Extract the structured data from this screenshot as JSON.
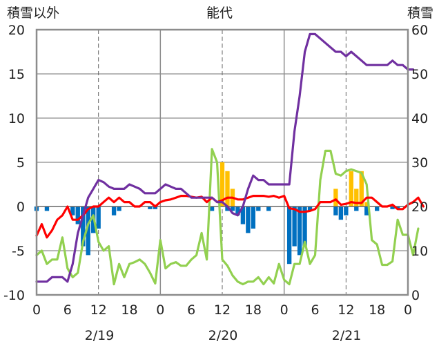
{
  "chart_data": {
    "type": "combo",
    "title": "能代",
    "left_axis_title": "積雪以外",
    "right_axis_title": "積雪",
    "y_left": {
      "min": -10,
      "max": 20,
      "ticks": [
        -10,
        -5,
        0,
        5,
        10,
        15,
        20
      ]
    },
    "y_right": {
      "min": 0,
      "max": 60,
      "ticks": [
        0,
        10,
        20,
        30,
        40,
        50,
        60
      ]
    },
    "x": {
      "min": 0,
      "max": 72,
      "ticks": [
        0,
        6,
        12,
        18,
        24,
        30,
        36,
        42,
        48,
        54,
        60,
        66,
        72
      ],
      "tick_labels": [
        "0",
        "6",
        "12",
        "18",
        "0",
        "6",
        "12",
        "18",
        "0",
        "6",
        "12",
        "18",
        "0"
      ],
      "day_lines": [
        24,
        48
      ],
      "dashed_lines": [
        12,
        36,
        60
      ]
    },
    "day_labels": [
      {
        "text": "2/19",
        "x": 12
      },
      {
        "text": "2/20",
        "x": 36
      },
      {
        "text": "2/21",
        "x": 60
      }
    ],
    "series": [
      {
        "kind": "bar",
        "color": "#0070C0",
        "axis": "left",
        "points": [
          [
            0,
            -0.5
          ],
          [
            2,
            -0.5
          ],
          [
            7,
            -1
          ],
          [
            8,
            -2
          ],
          [
            9,
            -4.5
          ],
          [
            10,
            -5.5
          ],
          [
            11,
            -3
          ],
          [
            12,
            -2.5
          ],
          [
            15,
            -1
          ],
          [
            16,
            -0.5
          ],
          [
            22,
            -0.3
          ],
          [
            23,
            -0.3
          ],
          [
            34,
            -0.5
          ],
          [
            37,
            -0.5
          ],
          [
            38,
            -0.5
          ],
          [
            39,
            -1
          ],
          [
            40,
            -2
          ],
          [
            41,
            -3
          ],
          [
            42,
            -2.5
          ],
          [
            43,
            -0.5
          ],
          [
            45,
            -0.5
          ],
          [
            49,
            -6.5
          ],
          [
            50,
            -4.5
          ],
          [
            51,
            -5.5
          ],
          [
            52,
            -4.5
          ],
          [
            53,
            -0.5
          ],
          [
            58,
            -1
          ],
          [
            59,
            -1.5
          ],
          [
            60,
            -1
          ],
          [
            62,
            -0.5
          ],
          [
            64,
            -1
          ],
          [
            66,
            -0.5
          ],
          [
            69,
            -0.3
          ],
          [
            70,
            -0.3
          ]
        ]
      },
      {
        "kind": "bar",
        "color": "#FFC000",
        "axis": "left",
        "points": [
          [
            36,
            5
          ],
          [
            37,
            4
          ],
          [
            38,
            2
          ],
          [
            58,
            2
          ],
          [
            61,
            4
          ],
          [
            62,
            2
          ],
          [
            63,
            4
          ],
          [
            64,
            0.5
          ]
        ]
      },
      {
        "kind": "line",
        "color": "#92D050",
        "axis": "left",
        "points": [
          [
            0,
            -5.5
          ],
          [
            1,
            -5
          ],
          [
            2,
            -6.5
          ],
          [
            3,
            -6
          ],
          [
            4,
            -6
          ],
          [
            5,
            -3.5
          ],
          [
            6,
            -7
          ],
          [
            7,
            -8
          ],
          [
            8,
            -7.5
          ],
          [
            9,
            -4
          ],
          [
            10,
            -2
          ],
          [
            11,
            -1
          ],
          [
            12,
            -4
          ],
          [
            13,
            -5
          ],
          [
            14,
            -4.5
          ],
          [
            15,
            -8.8
          ],
          [
            16,
            -6.5
          ],
          [
            17,
            -8
          ],
          [
            18,
            -6.5
          ],
          [
            19,
            -6.3
          ],
          [
            20,
            -6
          ],
          [
            21,
            -6.5
          ],
          [
            22,
            -7.5
          ],
          [
            23,
            -8.7
          ],
          [
            24,
            -3.8
          ],
          [
            25,
            -7
          ],
          [
            26,
            -6.5
          ],
          [
            27,
            -6.3
          ],
          [
            28,
            -6.7
          ],
          [
            29,
            -6.7
          ],
          [
            30,
            -6
          ],
          [
            31,
            -5.5
          ],
          [
            32,
            -3
          ],
          [
            33,
            -6
          ],
          [
            34,
            6.5
          ],
          [
            35,
            5
          ],
          [
            36,
            -6
          ],
          [
            37,
            -6.7
          ],
          [
            38,
            -7.8
          ],
          [
            39,
            -8.5
          ],
          [
            40,
            -8.8
          ],
          [
            41,
            -8.5
          ],
          [
            42,
            -8.5
          ],
          [
            43,
            -8
          ],
          [
            44,
            -8.8
          ],
          [
            45,
            -8
          ],
          [
            46,
            -8.7
          ],
          [
            47,
            -6.5
          ],
          [
            48,
            -8.3
          ],
          [
            49,
            -8.8
          ],
          [
            50,
            -6.5
          ],
          [
            51,
            -6.5
          ],
          [
            52,
            -4
          ],
          [
            53,
            -6.5
          ],
          [
            54,
            -5.5
          ],
          [
            55,
            3
          ],
          [
            56,
            6.3
          ],
          [
            57,
            6.3
          ],
          [
            58,
            3.7
          ],
          [
            59,
            3.5
          ],
          [
            60,
            4
          ],
          [
            61,
            4.2
          ],
          [
            62,
            4
          ],
          [
            63,
            3.8
          ],
          [
            64,
            2.5
          ],
          [
            65,
            -3.8
          ],
          [
            66,
            -4.3
          ],
          [
            67,
            -6.6
          ],
          [
            68,
            -6.6
          ],
          [
            69,
            -6.2
          ],
          [
            70,
            -1.5
          ],
          [
            71,
            -3.2
          ],
          [
            72,
            -3.2
          ],
          [
            73,
            -5.5
          ],
          [
            74,
            -2.5
          ]
        ]
      },
      {
        "kind": "line",
        "color": "#FF0000",
        "axis": "left",
        "points": [
          [
            0,
            -3.3
          ],
          [
            1,
            -2
          ],
          [
            2,
            -3.5
          ],
          [
            3,
            -2.7
          ],
          [
            4,
            -1.5
          ],
          [
            5,
            -1
          ],
          [
            6,
            0
          ],
          [
            7,
            -1.5
          ],
          [
            8,
            -1.5
          ],
          [
            9,
            -1
          ],
          [
            10,
            -0.3
          ],
          [
            11,
            0
          ],
          [
            12,
            0
          ],
          [
            13,
            0.5
          ],
          [
            14,
            1
          ],
          [
            15,
            0.5
          ],
          [
            16,
            1
          ],
          [
            17,
            0.5
          ],
          [
            18,
            0.5
          ],
          [
            19,
            0
          ],
          [
            20,
            0
          ],
          [
            21,
            0.5
          ],
          [
            22,
            0.5
          ],
          [
            23,
            0
          ],
          [
            24,
            0.5
          ],
          [
            25,
            0.7
          ],
          [
            26,
            0.8
          ],
          [
            27,
            1
          ],
          [
            28,
            1.2
          ],
          [
            29,
            1.2
          ],
          [
            30,
            1.1
          ],
          [
            31,
            1
          ],
          [
            32,
            1.1
          ],
          [
            33,
            0.5
          ],
          [
            34,
            1
          ],
          [
            35,
            0.5
          ],
          [
            36,
            0.7
          ],
          [
            37,
            1
          ],
          [
            38,
            1
          ],
          [
            39,
            0.8
          ],
          [
            40,
            0.8
          ],
          [
            41,
            1
          ],
          [
            42,
            1.2
          ],
          [
            43,
            1.2
          ],
          [
            44,
            1.2
          ],
          [
            45,
            1.1
          ],
          [
            46,
            1.2
          ],
          [
            47,
            1
          ],
          [
            48,
            1.2
          ],
          [
            49,
            -0.2
          ],
          [
            50,
            -0.3
          ],
          [
            51,
            -0.6
          ],
          [
            52,
            -0.6
          ],
          [
            53,
            -0.5
          ],
          [
            54,
            -0.3
          ],
          [
            55,
            0.5
          ],
          [
            56,
            0.5
          ],
          [
            57,
            0.5
          ],
          [
            58,
            0.8
          ],
          [
            59,
            0.2
          ],
          [
            60,
            0.3
          ],
          [
            61,
            0.5
          ],
          [
            62,
            0.4
          ],
          [
            63,
            0.4
          ],
          [
            64,
            1
          ],
          [
            65,
            1
          ],
          [
            66,
            0.5
          ],
          [
            67,
            0
          ],
          [
            68,
            0
          ],
          [
            69,
            0.2
          ],
          [
            70,
            -0.3
          ],
          [
            71,
            -0.3
          ],
          [
            72,
            0.2
          ],
          [
            73,
            0.5
          ],
          [
            74,
            1
          ],
          [
            75,
            0
          ]
        ]
      },
      {
        "kind": "line",
        "color": "#7030A0",
        "axis": "right",
        "points": [
          [
            0,
            3
          ],
          [
            1,
            3
          ],
          [
            2,
            3
          ],
          [
            3,
            4
          ],
          [
            4,
            4
          ],
          [
            5,
            4
          ],
          [
            6,
            3
          ],
          [
            7,
            7
          ],
          [
            8,
            14
          ],
          [
            9,
            18
          ],
          [
            10,
            22
          ],
          [
            11,
            24
          ],
          [
            12,
            26
          ],
          [
            13,
            25.5
          ],
          [
            14,
            24.5
          ],
          [
            15,
            24
          ],
          [
            16,
            24
          ],
          [
            17,
            24
          ],
          [
            18,
            25
          ],
          [
            19,
            24.5
          ],
          [
            20,
            24
          ],
          [
            21,
            23
          ],
          [
            22,
            23
          ],
          [
            23,
            23
          ],
          [
            24,
            24
          ],
          [
            25,
            25
          ],
          [
            26,
            24.5
          ],
          [
            27,
            24
          ],
          [
            28,
            24
          ],
          [
            29,
            23
          ],
          [
            30,
            22
          ],
          [
            31,
            22
          ],
          [
            32,
            22
          ],
          [
            33,
            22
          ],
          [
            34,
            22
          ],
          [
            35,
            21
          ],
          [
            36,
            21
          ],
          [
            37,
            20
          ],
          [
            38,
            18.5
          ],
          [
            39,
            18
          ],
          [
            40,
            20
          ],
          [
            41,
            24
          ],
          [
            42,
            27
          ],
          [
            43,
            26
          ],
          [
            44,
            26
          ],
          [
            45,
            25
          ],
          [
            46,
            25
          ],
          [
            47,
            25
          ],
          [
            48,
            25
          ],
          [
            49,
            25
          ],
          [
            50,
            37
          ],
          [
            51,
            45
          ],
          [
            52,
            55
          ],
          [
            53,
            59
          ],
          [
            54,
            59
          ],
          [
            55,
            58
          ],
          [
            56,
            57
          ],
          [
            57,
            56
          ],
          [
            58,
            55
          ],
          [
            59,
            55
          ],
          [
            60,
            54
          ],
          [
            61,
            55
          ],
          [
            62,
            54
          ],
          [
            63,
            53
          ],
          [
            64,
            52
          ],
          [
            65,
            52
          ],
          [
            66,
            52
          ],
          [
            67,
            52
          ],
          [
            68,
            52
          ],
          [
            69,
            53
          ],
          [
            70,
            52
          ],
          [
            71,
            52
          ],
          [
            72,
            51
          ],
          [
            73,
            51
          ]
        ]
      }
    ]
  }
}
